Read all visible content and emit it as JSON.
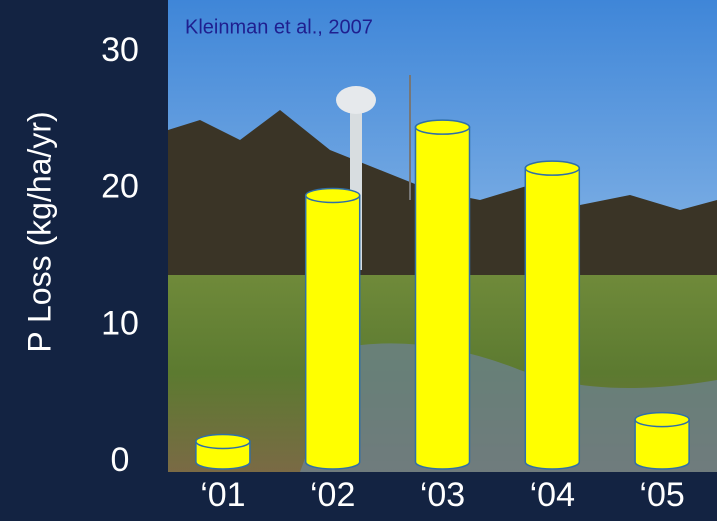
{
  "chart_data": {
    "type": "bar",
    "annotation": "Kleinman et al., 2007",
    "y_label": "P Loss (kg/ha/yr)",
    "categories": [
      "‘01",
      "‘02",
      "‘03",
      "‘04",
      "‘05"
    ],
    "values": [
      1.5,
      19.5,
      24.5,
      21.5,
      3.1
    ],
    "color": "#ffff00",
    "ylim": [
      0,
      30
    ],
    "yticks": [
      0,
      10,
      20,
      30
    ],
    "grid": false
  }
}
